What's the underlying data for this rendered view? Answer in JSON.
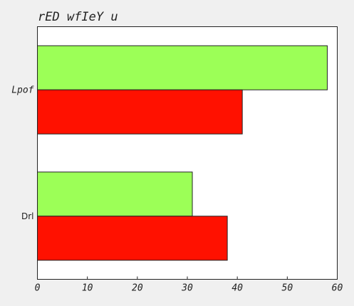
{
  "chart_data": {
    "type": "bar",
    "orientation": "horizontal",
    "title": "rED wfIeY  u",
    "xlabel": "",
    "ylabel": "",
    "xlim": [
      0,
      60
    ],
    "x_ticks": [
      "0",
      "10",
      "20",
      "30",
      "40",
      "50",
      "60"
    ],
    "categories": [
      "Lpof",
      "Drl"
    ],
    "category_label_styles": [
      "italic",
      "plain"
    ],
    "series": [
      {
        "color": "#9cff57",
        "values": [
          58,
          31
        ]
      },
      {
        "color": "#ff1100",
        "values": [
          41,
          38
        ]
      }
    ],
    "grid": false,
    "legend": "none"
  }
}
